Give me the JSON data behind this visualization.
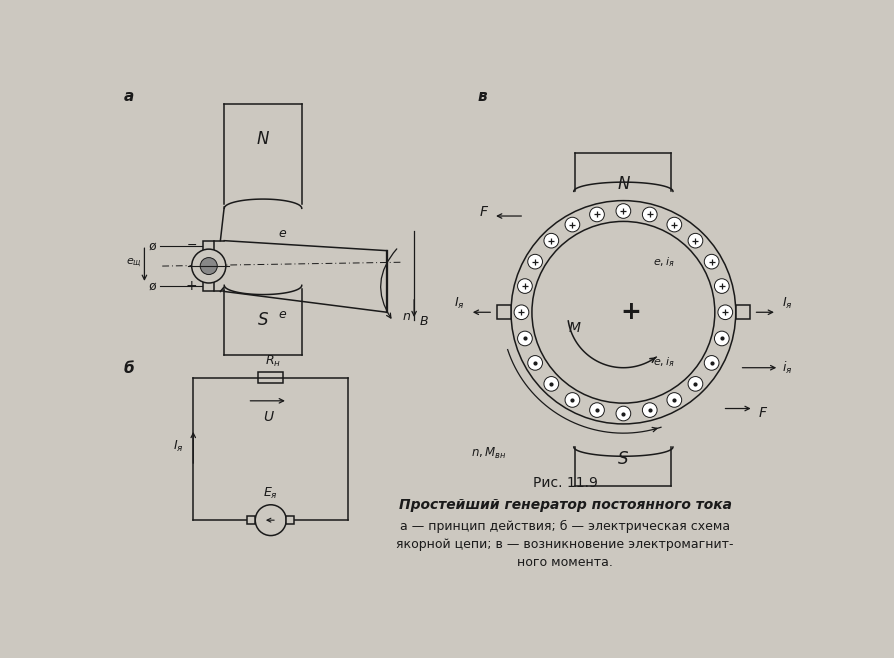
{
  "bg_color": "#ccc8c0",
  "line_color": "#1a1a1a",
  "fig_width": 8.95,
  "fig_height": 6.58,
  "caption_line1": "Рис. 11.9",
  "caption_line2": "Простейший генератор постоянного тока",
  "caption_line3": "а — принцип действия; б — электрическая схема",
  "caption_line4": "якорной цепи; в — возникновение электромагнит-",
  "caption_line5": "ного момента."
}
